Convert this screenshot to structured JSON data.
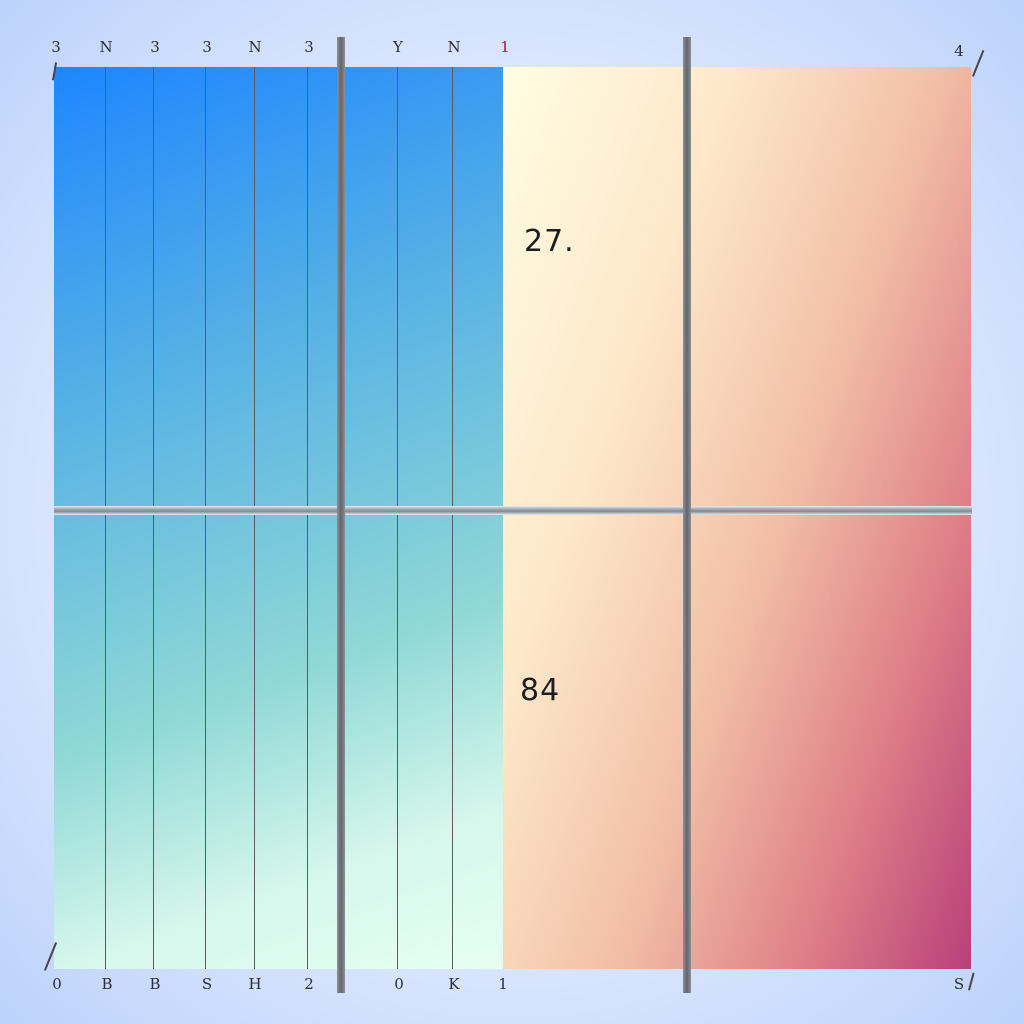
{
  "labels": {
    "upper_value": "27.",
    "lower_value": "84"
  },
  "top_ticks": [
    "3",
    "N",
    "3",
    "3",
    "N",
    "3",
    "Y",
    "N",
    "1",
    "4"
  ],
  "bottom_ticks": [
    "0",
    "B",
    "B",
    "S",
    "H",
    "2",
    "0",
    "K",
    "1",
    "S"
  ],
  "colors": {
    "cool_start": "#1e86ff",
    "cool_end": "#e6fff3",
    "warm_start": "#fffde3",
    "warm_end": "#b8407a",
    "accent_tick": "#b0103c"
  }
}
